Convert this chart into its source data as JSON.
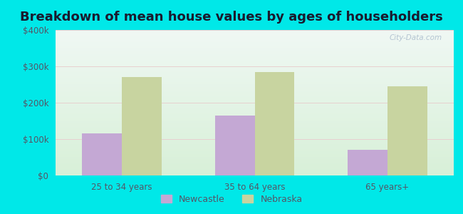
{
  "title": "Breakdown of mean house values by ages of householders",
  "categories": [
    "25 to 34 years",
    "35 to 64 years",
    "65 years+"
  ],
  "newcastle_values": [
    115000,
    165000,
    70000
  ],
  "nebraska_values": [
    270000,
    285000,
    245000
  ],
  "newcastle_color": "#c4a8d4",
  "nebraska_color": "#c8d4a0",
  "background_color": "#00e8e8",
  "grad_top": "#f0f8f4",
  "grad_bottom": "#d8f0d8",
  "ylim": [
    0,
    400000
  ],
  "yticks": [
    0,
    100000,
    200000,
    300000,
    400000
  ],
  "ytick_labels": [
    "$0",
    "$100k",
    "$200k",
    "$300k",
    "$400k"
  ],
  "bar_width": 0.3,
  "legend_newcastle": "Newcastle",
  "legend_nebraska": "Nebraska",
  "title_fontsize": 13,
  "tick_fontsize": 8.5,
  "legend_fontsize": 9,
  "title_color": "#1a1a2e",
  "tick_color": "#555566",
  "grid_color": "#e0e0e0"
}
